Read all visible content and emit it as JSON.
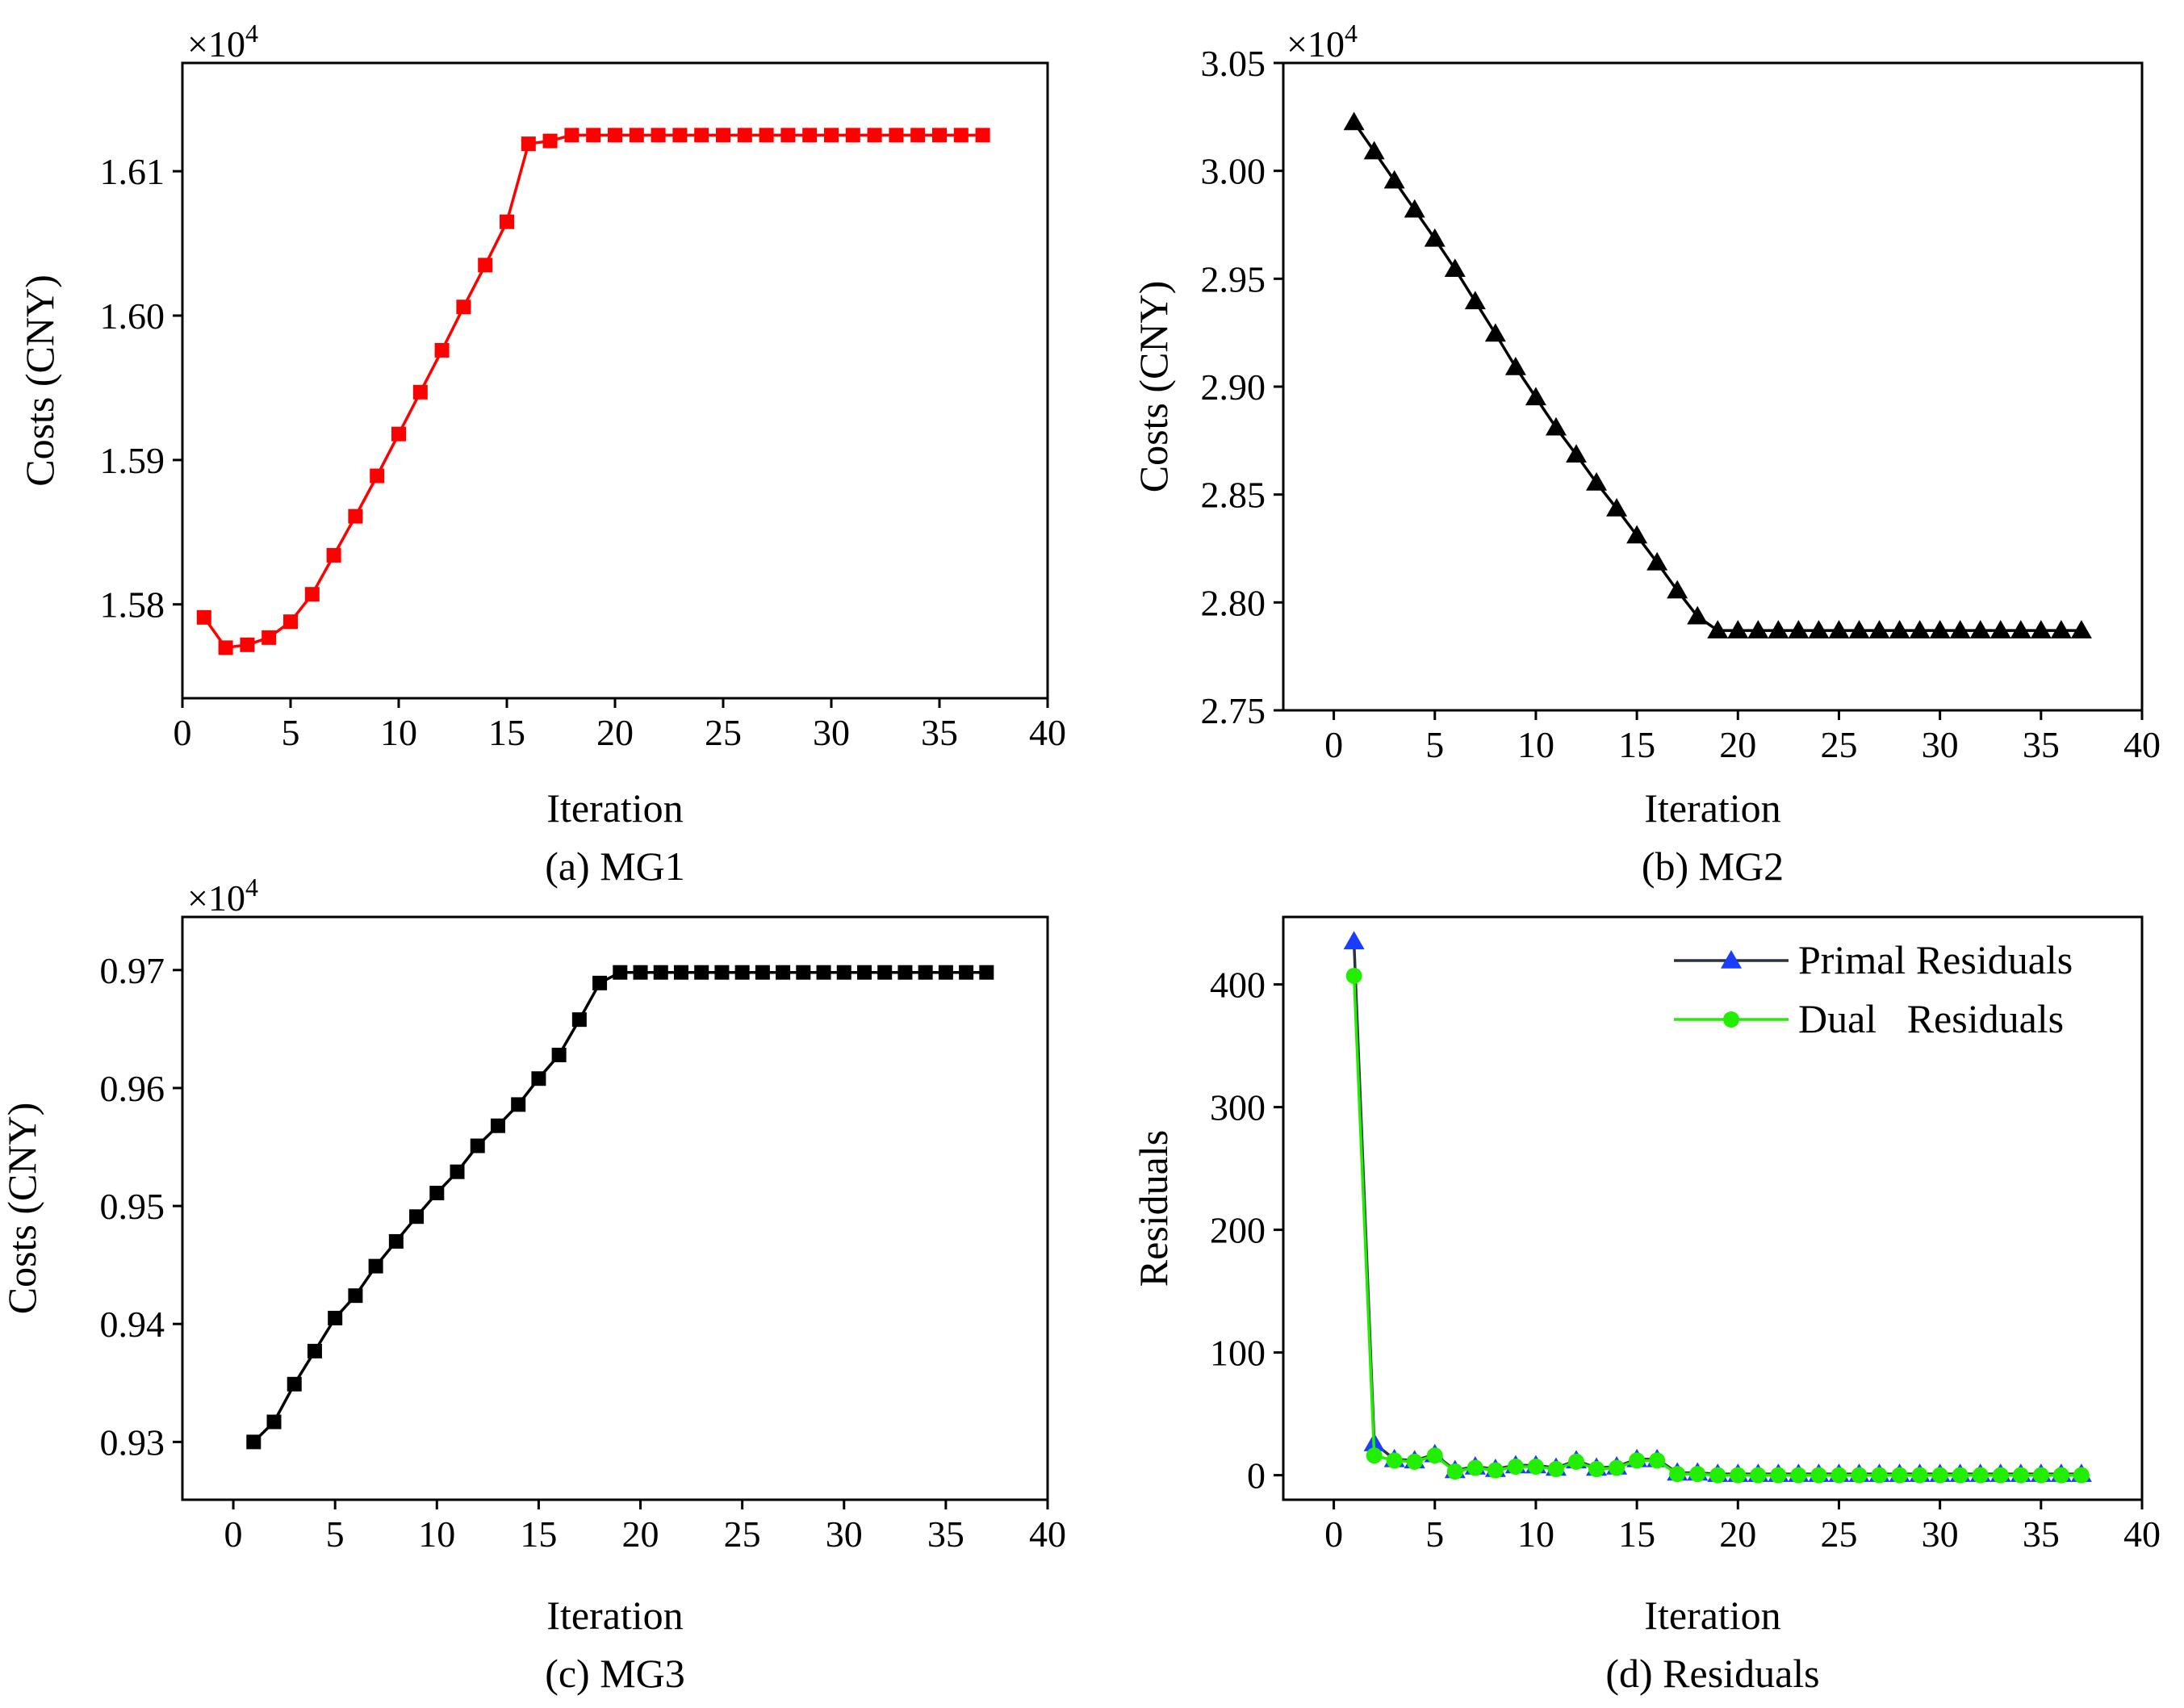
{
  "chart_data": [
    {
      "id": "a",
      "type": "line",
      "caption": "(a) MG1",
      "xlabel": "Iteration",
      "ylabel": "Costs (CNY)",
      "multiplier": {
        "base": "×10",
        "exp": "4"
      },
      "xlim": [
        0,
        40
      ],
      "xticks": [
        0,
        5,
        10,
        15,
        20,
        25,
        30,
        35,
        40
      ],
      "ylim": [
        1.5735,
        1.6175
      ],
      "yticks": [
        1.58,
        1.59,
        1.6,
        1.61
      ],
      "ytick_labels": [
        "1.58",
        "1.59",
        "1.60",
        "1.61"
      ],
      "series": [
        {
          "name": "MG1",
          "color": "#ff0000",
          "marker": "square",
          "x": [
            1,
            2,
            3,
            4,
            5,
            6,
            7,
            8,
            9,
            10,
            11,
            12,
            13,
            14,
            15,
            16,
            17,
            18,
            19,
            20,
            21,
            22,
            23,
            24,
            25,
            26,
            27,
            28,
            29,
            30,
            31,
            32,
            33,
            34,
            35,
            36,
            37
          ],
          "y": [
            1.5791,
            1.577,
            1.5772,
            1.5777,
            1.5788,
            1.5807,
            1.5834,
            1.5861,
            1.5889,
            1.5918,
            1.5947,
            1.5976,
            1.6006,
            1.6035,
            1.6065,
            1.6119,
            1.6121,
            1.6125,
            1.6125,
            1.6125,
            1.6125,
            1.6125,
            1.6125,
            1.6125,
            1.6125,
            1.6125,
            1.6125,
            1.6125,
            1.6125,
            1.6125,
            1.6125,
            1.6125,
            1.6125,
            1.6125,
            1.6125,
            1.6125,
            1.6125
          ]
        }
      ]
    },
    {
      "id": "b",
      "type": "line",
      "caption": "(b) MG2",
      "xlabel": "Iteration",
      "ylabel": "Costs (CNY)",
      "multiplier": {
        "base": "×10",
        "exp": "4"
      },
      "xlim": [
        -2.5,
        40
      ],
      "xticks": [
        0,
        5,
        10,
        15,
        20,
        25,
        30,
        35,
        40
      ],
      "ylim": [
        2.75,
        3.05
      ],
      "yticks": [
        2.75,
        2.8,
        2.85,
        2.9,
        2.95,
        3.0,
        3.05
      ],
      "ytick_labels": [
        "2.75",
        "2.80",
        "2.85",
        "2.90",
        "2.95",
        "3.00",
        "3.05"
      ],
      "series": [
        {
          "name": "MG2",
          "color": "#000000",
          "marker": "triangle",
          "x": [
            1,
            2,
            3,
            4,
            5,
            6,
            7,
            8,
            9,
            10,
            11,
            12,
            13,
            14,
            15,
            16,
            17,
            18,
            19,
            20,
            21,
            22,
            23,
            24,
            25,
            26,
            27,
            28,
            29,
            30,
            31,
            32,
            33,
            34,
            35,
            36,
            37
          ],
          "y": [
            3.0225,
            3.009,
            2.9955,
            2.982,
            2.9685,
            2.9545,
            2.9395,
            2.9245,
            2.909,
            2.895,
            2.881,
            2.8685,
            2.8555,
            2.8435,
            2.831,
            2.8185,
            2.8055,
            2.7935,
            2.787,
            2.787,
            2.787,
            2.787,
            2.787,
            2.787,
            2.787,
            2.787,
            2.787,
            2.787,
            2.787,
            2.787,
            2.787,
            2.787,
            2.787,
            2.787,
            2.787,
            2.787,
            2.787
          ]
        }
      ]
    },
    {
      "id": "c",
      "type": "line",
      "caption": "(c) MG3",
      "xlabel": "Iteration",
      "ylabel": "Costs (CNY)",
      "multiplier": {
        "base": "×10",
        "exp": "4"
      },
      "xlim": [
        -2.5,
        40
      ],
      "xticks": [
        0,
        5,
        10,
        15,
        20,
        25,
        30,
        35,
        40
      ],
      "ylim": [
        0.9251,
        0.9745
      ],
      "yticks": [
        0.93,
        0.94,
        0.95,
        0.96,
        0.97
      ],
      "ytick_labels": [
        "0.93",
        "0.94",
        "0.95",
        "0.96",
        "0.97"
      ],
      "series": [
        {
          "name": "MG3",
          "color": "#000000",
          "marker": "square",
          "x": [
            1,
            2,
            3,
            4,
            5,
            6,
            7,
            8,
            9,
            10,
            11,
            12,
            13,
            14,
            15,
            16,
            17,
            18,
            19,
            20,
            21,
            22,
            23,
            24,
            25,
            26,
            27,
            28,
            29,
            30,
            31,
            32,
            33,
            34,
            35,
            36,
            37
          ],
          "y": [
            0.93,
            0.9317,
            0.9349,
            0.9377,
            0.9405,
            0.9424,
            0.9449,
            0.947,
            0.9491,
            0.9511,
            0.9529,
            0.9551,
            0.9568,
            0.9586,
            0.9608,
            0.9628,
            0.9658,
            0.9689,
            0.9698,
            0.9698,
            0.9698,
            0.9698,
            0.9698,
            0.9698,
            0.9698,
            0.9698,
            0.9698,
            0.9698,
            0.9698,
            0.9698,
            0.9698,
            0.9698,
            0.9698,
            0.9698,
            0.9698,
            0.9698,
            0.9698
          ]
        }
      ]
    },
    {
      "id": "d",
      "type": "line",
      "caption": "(d) Residuals",
      "xlabel": "Iteration",
      "ylabel": "Residuals",
      "xlim": [
        -2.5,
        40
      ],
      "xticks": [
        0,
        5,
        10,
        15,
        20,
        25,
        30,
        35,
        40
      ],
      "ylim": [
        -20,
        455
      ],
      "yticks": [
        0,
        100,
        200,
        300,
        400
      ],
      "ytick_labels": [
        "0",
        "100",
        "200",
        "300",
        "400"
      ],
      "legend": "top-right",
      "series": [
        {
          "name": "Primal Residuals",
          "color": "#1a3dff",
          "line_color": "#2a3140",
          "marker": "triangle",
          "x": [
            1,
            2,
            3,
            4,
            5,
            6,
            7,
            8,
            9,
            10,
            11,
            12,
            13,
            14,
            15,
            16,
            17,
            18,
            19,
            20,
            21,
            22,
            23,
            24,
            25,
            26,
            27,
            28,
            29,
            30,
            31,
            32,
            33,
            34,
            35,
            36,
            37
          ],
          "y": [
            435,
            26,
            13,
            12,
            17,
            4,
            7,
            5,
            8,
            8,
            6,
            12,
            6,
            7,
            13,
            13,
            2,
            2,
            1,
            1,
            1,
            1,
            1,
            1,
            1,
            1,
            1,
            1,
            1,
            1,
            1,
            1,
            1,
            1,
            1,
            1,
            1
          ]
        },
        {
          "name": "Dual   Residuals",
          "color": "#22ee00",
          "line_color": "#22ee00",
          "marker": "circle",
          "x": [
            1,
            2,
            3,
            4,
            5,
            6,
            7,
            8,
            9,
            10,
            11,
            12,
            13,
            14,
            15,
            16,
            17,
            18,
            19,
            20,
            21,
            22,
            23,
            24,
            25,
            26,
            27,
            28,
            29,
            30,
            31,
            32,
            33,
            34,
            35,
            36,
            37
          ],
          "y": [
            407,
            16,
            12,
            11,
            16,
            3,
            6,
            4,
            7,
            7,
            5,
            11,
            5,
            6,
            12,
            12,
            1,
            1,
            0,
            0,
            0,
            0,
            0,
            0,
            0,
            0,
            0,
            0,
            0,
            0,
            0,
            0,
            0,
            0,
            0,
            0,
            0
          ]
        }
      ]
    }
  ]
}
